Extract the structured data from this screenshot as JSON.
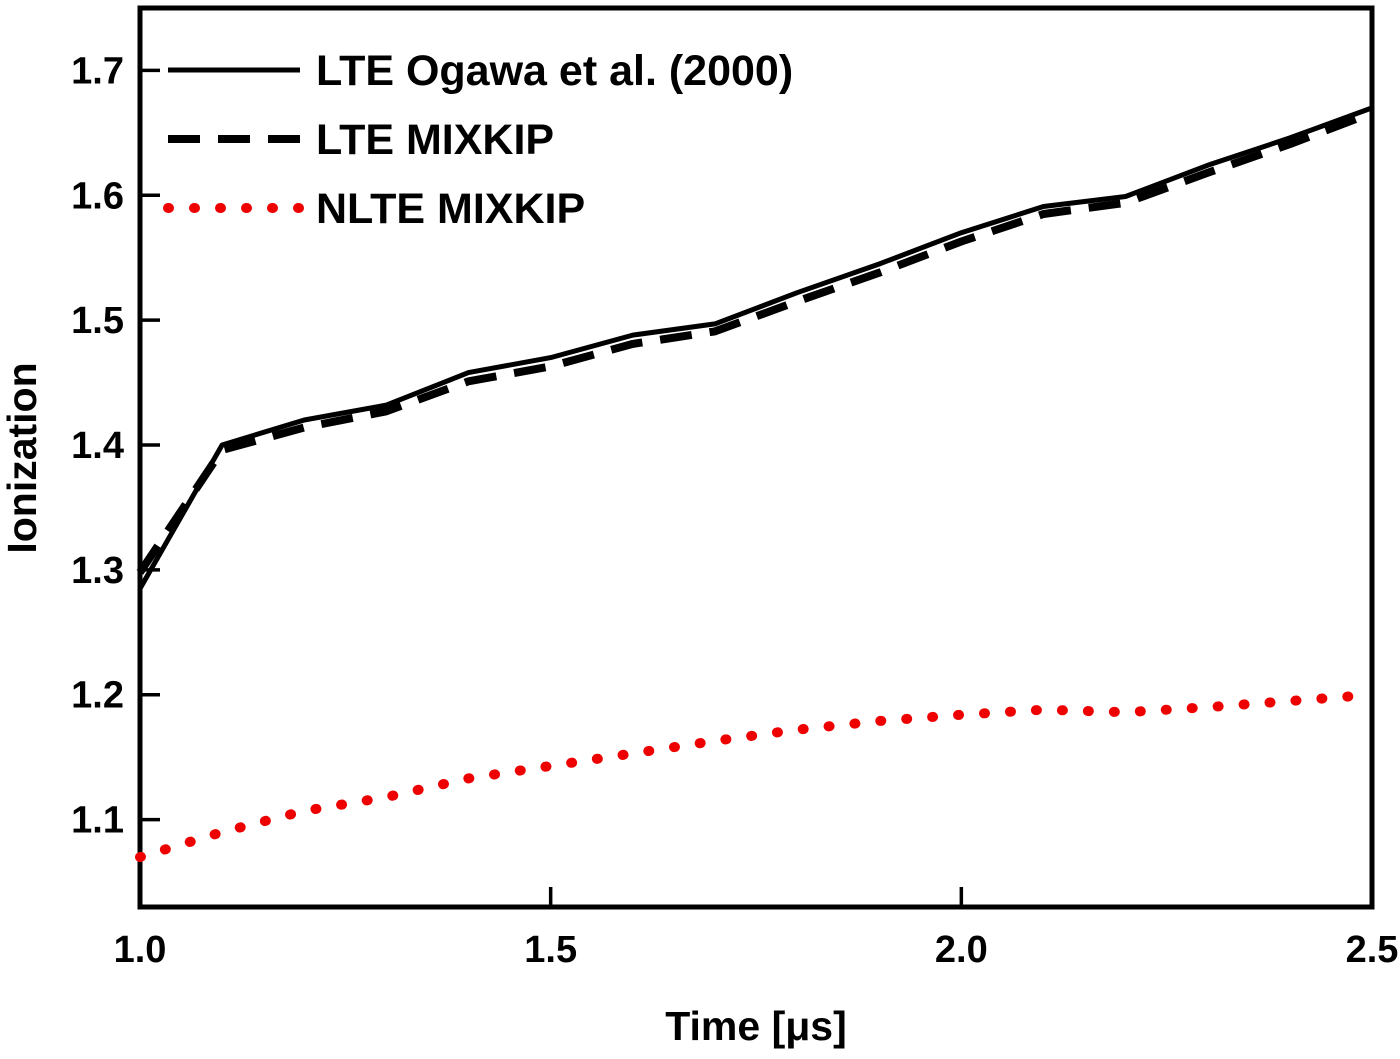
{
  "chart_data": {
    "type": "line",
    "title": "",
    "xlabel": "Time [μs]",
    "ylabel": "Ionization",
    "xlim": [
      1.0,
      2.5
    ],
    "ylim": [
      1.03,
      1.75
    ],
    "grid": false,
    "legend_position": "top-left",
    "x_ticks": {
      "values": [
        1.0,
        1.5,
        2.0,
        2.5
      ],
      "labels": [
        "1.0",
        "1.5",
        "2.0",
        "2.5"
      ]
    },
    "y_ticks": {
      "values": [
        1.1,
        1.2,
        1.3,
        1.4,
        1.5,
        1.6,
        1.7
      ],
      "labels": [
        "1.1",
        "1.2",
        "1.3",
        "1.4",
        "1.5",
        "1.6",
        "1.7"
      ]
    },
    "x": [
      1.0,
      1.1,
      1.2,
      1.3,
      1.4,
      1.5,
      1.6,
      1.7,
      1.8,
      1.9,
      2.0,
      2.1,
      2.2,
      2.3,
      2.4,
      2.5
    ],
    "series": [
      {
        "name": "LTE Ogawa et al. (2000)",
        "color": "#000000",
        "style": "solid",
        "values": [
          1.285,
          1.4,
          1.42,
          1.432,
          1.458,
          1.47,
          1.488,
          1.497,
          1.522,
          1.545,
          1.57,
          1.591,
          1.599,
          1.624,
          1.646,
          1.67
        ]
      },
      {
        "name": "LTE MIXKIP",
        "color": "#000000",
        "style": "dashed",
        "values": [
          1.298,
          1.396,
          1.414,
          1.427,
          1.451,
          1.463,
          1.481,
          1.491,
          1.515,
          1.538,
          1.563,
          1.585,
          1.594,
          1.618,
          1.641,
          1.666
        ]
      },
      {
        "name": "NLTE MIXKIP",
        "color": "#ee0000",
        "style": "dotted",
        "values": [
          1.07,
          1.09,
          1.107,
          1.118,
          1.133,
          1.143,
          1.153,
          1.163,
          1.172,
          1.179,
          1.184,
          1.188,
          1.186,
          1.19,
          1.195,
          1.2
        ]
      }
    ]
  }
}
